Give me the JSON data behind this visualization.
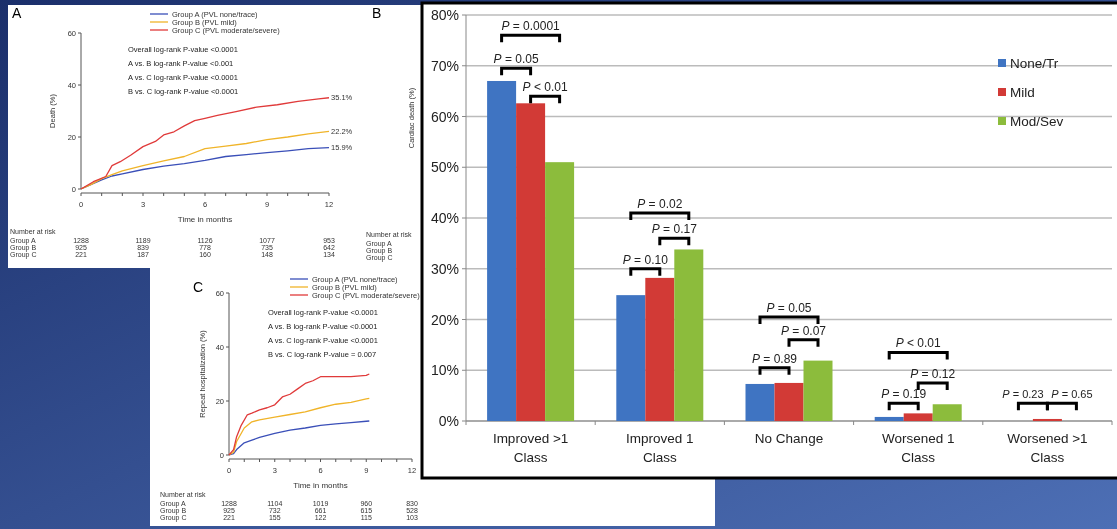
{
  "chart_data": [
    {
      "type": "line",
      "title": "A",
      "xlabel": "Time in months",
      "ylabel": "Death (%)",
      "xlim": [
        0,
        12
      ],
      "ylim": [
        0,
        60
      ],
      "xticks": [
        0,
        {
          "value": 1,
          "label": null
        },
        {
          "value": 2,
          "label": null
        },
        3,
        {
          "value": 4,
          "label": null
        },
        {
          "value": 5,
          "label": null
        },
        6,
        {
          "value": 7,
          "label": null
        },
        {
          "value": 8,
          "label": null
        },
        9,
        {
          "value": 10,
          "label": null
        },
        {
          "value": 11,
          "label": null
        },
        12
      ],
      "yticks": [
        0,
        20,
        40,
        60
      ],
      "legend": "top",
      "series": [
        {
          "name": "Group A (PVL none/trace)",
          "color": "#3a4fb8",
          "x": [
            0,
            0.5,
            1,
            1.5,
            2,
            3,
            4,
            5,
            6,
            7,
            8,
            9,
            10,
            11,
            12
          ],
          "values": [
            0,
            1.8,
            3.5,
            5,
            5.8,
            7.5,
            8.8,
            9.8,
            11,
            12.5,
            13.2,
            14,
            14.7,
            15.5,
            15.9
          ]
        },
        {
          "name": "Group B (PVL mild)",
          "color": "#f0b429",
          "x": [
            0,
            0.5,
            1,
            1.5,
            2,
            3,
            4,
            5,
            6,
            7,
            8,
            9,
            10,
            11,
            12
          ],
          "values": [
            0,
            1.8,
            4,
            5.5,
            7,
            9,
            10.8,
            12.5,
            15.5,
            16.5,
            17.5,
            19,
            20,
            21.2,
            22.2
          ]
        },
        {
          "name": "Group C (PVL moderate/severe)",
          "color": "#e03a3a",
          "x": [
            0,
            0.6,
            1.2,
            1.5,
            1.9,
            2.4,
            3,
            3.6,
            4,
            4.5,
            5,
            5.5,
            6,
            6.6,
            7.5,
            8.5,
            9.5,
            10.5,
            11.5,
            12
          ],
          "values": [
            0,
            2.8,
            4.8,
            9,
            10.5,
            13,
            16.3,
            18.3,
            20.8,
            22,
            24.3,
            26.3,
            27.2,
            28.3,
            29.8,
            31.5,
            32.4,
            33.7,
            34.7,
            35.1
          ]
        }
      ],
      "annotations": [
        "Overall log-rank P-value <0.0001",
        "A vs. B log-rank P-value <0.001",
        "A vs. C log-rank P-value <0.0001",
        "B vs. C log-rank P-value <0.0001",
        "Number at risk",
        "Group A",
        "1288",
        "1189",
        "1126",
        "1077",
        "953",
        "Group B",
        "925",
        "839",
        "778",
        "735",
        "642",
        "Group C",
        "221",
        "187",
        "160",
        "148",
        "134",
        "35.1%",
        "22.2%",
        "15.9%"
      ]
    },
    {
      "type": "bar",
      "title": "B",
      "ylabel": "Cardiac death (%)",
      "categories": [
        "Improved >1 Class",
        "Improved 1 Class",
        "No Change",
        "Worsened 1 Class",
        "Worsened >1 Class"
      ],
      "ylim": [
        0,
        80
      ],
      "yticks": [
        {
          "value": 0,
          "label": "0%"
        },
        {
          "value": 10,
          "label": "10%"
        },
        {
          "value": 20,
          "label": "20%"
        },
        {
          "value": 30,
          "label": "30%"
        },
        {
          "value": 40,
          "label": "40%"
        },
        {
          "value": 50,
          "label": "50%"
        },
        {
          "value": 60,
          "label": "60%"
        },
        {
          "value": 70,
          "label": "70%"
        },
        {
          "value": 80,
          "label": "80%"
        }
      ],
      "grid": "y",
      "legend": "top right",
      "series": [
        {
          "name": "None/Tr",
          "color": "#3f74c2",
          "values": [
            67,
            24.8,
            7.3,
            0.8,
            0
          ]
        },
        {
          "name": "Mild",
          "color": "#d23a36",
          "values": [
            62.6,
            28.2,
            7.5,
            1.5,
            0.4
          ]
        },
        {
          "name": "Mod/Sev",
          "color": "#8cbc3c",
          "values": [
            51,
            33.8,
            11.9,
            3.3,
            0
          ]
        }
      ],
      "annotations": [
        "P = 0.0001",
        "P = 0.05",
        "P < 0.01",
        "P = 0.02",
        "P = 0.17",
        "P = 0.10",
        "P = 0.05",
        "P = 0.07",
        "P = 0.89",
        "P < 0.01",
        "P = 0.12",
        "P = 0.19",
        "P = 0.23",
        "P = 0.65",
        "Number at risk",
        "Group A",
        "Group B",
        "Group C"
      ]
    },
    {
      "type": "line",
      "title": "C",
      "xlabel": "Time in months",
      "ylabel": "Repeat hospitalization (%)",
      "xlim": [
        0,
        12
      ],
      "ylim": [
        0,
        60
      ],
      "xticks": [
        0,
        {
          "value": 1,
          "label": null
        },
        {
          "value": 2,
          "label": null
        },
        3,
        {
          "value": 4,
          "label": null
        },
        {
          "value": 5,
          "label": null
        },
        6,
        {
          "value": 7,
          "label": null
        },
        {
          "value": 8,
          "label": null
        },
        9,
        {
          "value": 10,
          "label": null
        },
        {
          "value": 11,
          "label": null
        },
        12
      ],
      "yticks": [
        0,
        20,
        40,
        60
      ],
      "legend": "top",
      "series": [
        {
          "name": "Group A (PVL none/trace)",
          "color": "#3a4fb8",
          "x": [
            0,
            0.3,
            0.5,
            1,
            1.5,
            2,
            3,
            4,
            5,
            6,
            7,
            8,
            9,
            9.2
          ],
          "values": [
            0,
            0.5,
            2,
            4.5,
            5.5,
            6.5,
            8,
            9.2,
            10,
            11,
            11.5,
            12,
            12.5,
            12.6
          ]
        },
        {
          "name": "Group B (PVL mild)",
          "color": "#f0b429",
          "x": [
            0,
            0.3,
            0.5,
            1,
            1.5,
            2,
            3,
            4,
            5,
            6,
            7,
            8,
            9,
            9.2
          ],
          "values": [
            0,
            1,
            5,
            10,
            12.3,
            13,
            14,
            15,
            16,
            17.5,
            18.8,
            19.5,
            20.8,
            21
          ]
        },
        {
          "name": "Group C (PVL moderate/severe)",
          "color": "#e03a3a",
          "x": [
            0,
            0.3,
            0.5,
            0.8,
            1.2,
            1.5,
            2,
            2.5,
            3,
            3.5,
            4,
            4.5,
            5,
            5.5,
            6,
            7,
            8,
            9,
            9.2
          ],
          "values": [
            0,
            2,
            6.8,
            11,
            14.9,
            15.5,
            16.7,
            17.5,
            18.6,
            21.5,
            22.5,
            24.5,
            26.5,
            27.5,
            29,
            29,
            29,
            29.5,
            30
          ]
        }
      ],
      "annotations": [
        "Overall log-rank P-value <0.0001",
        "A vs. B log-rank P-value <0.0001",
        "A vs. C log-rank P-value <0.0001",
        "B vs. C log-rank P-value = 0.007",
        "Number at risk",
        "Group A",
        "1288",
        "1104",
        "1019",
        "960",
        "830",
        "Group B",
        "925",
        "732",
        "661",
        "615",
        "528",
        "Group C",
        "221",
        "155",
        "122",
        "115",
        "103"
      ]
    }
  ]
}
